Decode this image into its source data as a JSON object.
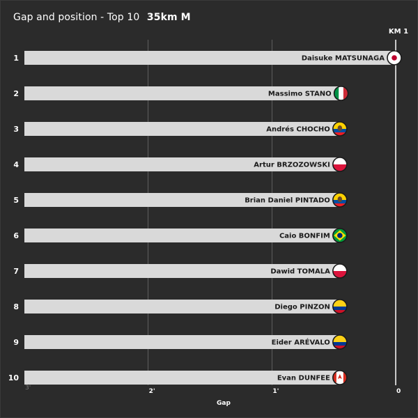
{
  "header": {
    "title": "Gap and position - Top 10",
    "subtitle": "35km M"
  },
  "marker_label": "KM 1",
  "chart_data": {
    "type": "bar",
    "orientation": "horizontal",
    "title": "Gap and position - Top 10",
    "subtitle": "35km M",
    "xlabel": "Gap",
    "x_ticks": [
      "3'",
      "2'",
      "1'",
      "0"
    ],
    "xlim_minutes": [
      3,
      0
    ],
    "grid": true,
    "categories": [
      "1",
      "2",
      "3",
      "4",
      "5",
      "6",
      "7",
      "8",
      "9",
      "10"
    ],
    "athletes": [
      {
        "rank": "1",
        "name": "Daisuke MATSUNAGA",
        "country": "JPN",
        "gap_min": 0.0
      },
      {
        "rank": "2",
        "name": "Massimo STANO",
        "country": "ITA",
        "gap_min": 0.43
      },
      {
        "rank": "3",
        "name": "Andrés CHOCHO",
        "country": "ECU",
        "gap_min": 0.44
      },
      {
        "rank": "4",
        "name": "Artur BRZOZOWSKI",
        "country": "POL",
        "gap_min": 0.44
      },
      {
        "rank": "5",
        "name": "Brian Daniel PINTADO",
        "country": "ECU",
        "gap_min": 0.44
      },
      {
        "rank": "6",
        "name": "Caio BONFIM",
        "country": "BRA",
        "gap_min": 0.44
      },
      {
        "rank": "7",
        "name": "Dawid TOMALA",
        "country": "POL",
        "gap_min": 0.44
      },
      {
        "rank": "8",
        "name": "Diego PINZON",
        "country": "COL",
        "gap_min": 0.44
      },
      {
        "rank": "9",
        "name": "Eider ARÉVALO",
        "country": "COL",
        "gap_min": 0.44
      },
      {
        "rank": "10",
        "name": "Evan DUNFEE",
        "country": "CAN",
        "gap_min": 0.44
      }
    ]
  }
}
